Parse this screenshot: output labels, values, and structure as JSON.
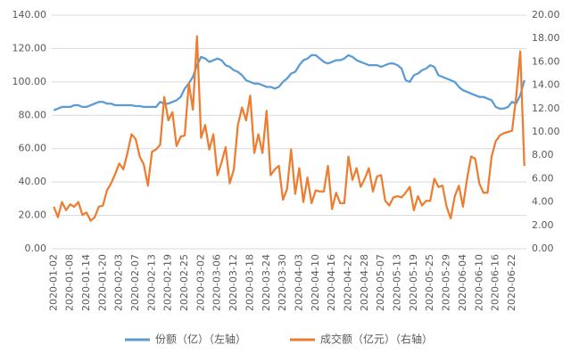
{
  "chart_data": {
    "type": "line",
    "categories": [
      "2020-01-02",
      null,
      null,
      null,
      "2020-01-08",
      null,
      null,
      null,
      "2020-01-14",
      null,
      null,
      null,
      "2020-01-20",
      null,
      null,
      null,
      "2020-02-03",
      null,
      null,
      null,
      "2020-02-07",
      null,
      null,
      null,
      "2020-02-13",
      null,
      null,
      null,
      "2020-02-19",
      null,
      null,
      null,
      "2020-02-25",
      null,
      null,
      null,
      "2020-03-02",
      null,
      null,
      null,
      "2020-03-06",
      null,
      null,
      null,
      "2020-03-12",
      null,
      null,
      null,
      "2020-03-18",
      null,
      null,
      null,
      "2020-03-24",
      null,
      null,
      null,
      "2020-03-30",
      null,
      null,
      null,
      "2020-04-03",
      null,
      null,
      null,
      "2020-04-10",
      null,
      null,
      null,
      "2020-04-16",
      null,
      null,
      null,
      "2020-04-22",
      null,
      null,
      null,
      "2020-04-28",
      null,
      null,
      null,
      "2020-05-07",
      null,
      null,
      null,
      "2020-05-13",
      null,
      null,
      null,
      "2020-05-19",
      null,
      null,
      null,
      "2020-05-25",
      null,
      null,
      null,
      "2020-05-29",
      null,
      null,
      null,
      "2020-06-04",
      null,
      null,
      null,
      "2020-06-10",
      null,
      null,
      null,
      "2020-06-16",
      null,
      null,
      null,
      "2020-06-22",
      null,
      null,
      null
    ],
    "series": [
      {
        "name": "份额（亿）（左轴）",
        "color": "#5b9bd5",
        "axis": "y",
        "values": [
          83,
          84,
          85,
          85,
          85,
          86,
          86,
          85,
          85,
          86,
          87,
          88,
          88,
          87,
          87,
          86,
          86,
          86,
          86,
          86,
          85.5,
          85.5,
          85,
          85,
          85,
          85,
          88,
          87,
          87,
          88,
          89,
          91,
          96,
          99,
          103,
          110,
          115,
          114,
          112,
          113,
          114,
          113,
          110,
          109,
          107,
          106,
          104,
          101,
          100,
          99,
          99,
          98,
          97,
          97,
          96,
          97,
          100,
          102,
          105,
          106,
          110,
          113,
          114,
          116,
          116,
          114,
          112,
          111,
          112,
          113,
          113,
          114,
          116,
          115,
          113,
          112,
          111,
          110,
          110,
          110,
          109,
          110,
          111,
          111,
          110,
          108,
          101,
          100,
          104,
          105,
          107,
          108,
          110,
          109,
          104,
          103,
          102,
          101,
          100,
          97,
          95,
          94,
          93,
          92,
          91,
          91,
          90,
          89,
          85,
          84,
          84,
          85,
          88,
          87,
          92,
          101
        ]
      },
      {
        "name": "成交额（亿元）（右轴）",
        "color": "#ed7d31",
        "axis": "y2",
        "values": [
          3.6,
          2.7,
          4.0,
          3.3,
          3.8,
          3.6,
          4.0,
          2.9,
          3.1,
          2.4,
          2.7,
          3.6,
          3.7,
          5.0,
          5.6,
          6.4,
          7.3,
          6.8,
          8.2,
          9.8,
          9.4,
          7.9,
          7.2,
          5.4,
          8.3,
          8.5,
          8.9,
          13.0,
          11.0,
          11.7,
          8.8,
          9.6,
          9.7,
          14.2,
          11.9,
          18.2,
          9.5,
          10.6,
          8.5,
          9.8,
          6.3,
          7.4,
          8.7,
          5.6,
          6.8,
          10.6,
          12.1,
          11.0,
          13.1,
          8.2,
          9.8,
          8.2,
          11.8,
          6.3,
          6.8,
          7.1,
          4.2,
          5.1,
          8.5,
          4.7,
          6.9,
          4.0,
          6.1,
          3.9,
          5.0,
          4.9,
          4.9,
          7.1,
          3.4,
          4.8,
          3.9,
          3.9,
          7.9,
          5.9,
          6.9,
          5.3,
          6.0,
          6.9,
          4.9,
          6.2,
          6.3,
          4.1,
          3.7,
          4.4,
          4.5,
          4.4,
          4.8,
          5.3,
          3.3,
          4.5,
          3.7,
          4.1,
          4.1,
          6.0,
          5.3,
          5.4,
          3.6,
          2.6,
          4.5,
          5.4,
          3.6,
          6.0,
          7.9,
          7.7,
          5.6,
          4.8,
          4.8,
          7.9,
          9.2,
          9.7,
          9.9,
          10.0,
          10.1,
          13.0,
          16.9,
          7.1
        ]
      }
    ],
    "ylim": [
      0,
      140
    ],
    "yticks": [
      {
        "value": 0,
        "label": "0.00"
      },
      {
        "value": 20,
        "label": "20.00"
      },
      {
        "value": 40,
        "label": "40.00"
      },
      {
        "value": 60,
        "label": "60.00"
      },
      {
        "value": 80,
        "label": "80.00"
      },
      {
        "value": 100,
        "label": "100.00"
      },
      {
        "value": 120,
        "label": "120.00"
      },
      {
        "value": 140,
        "label": "140.00"
      }
    ],
    "y2lim": [
      0,
      20
    ],
    "y2ticks": [
      {
        "value": 0,
        "label": "0.00"
      },
      {
        "value": 2,
        "label": "2.00"
      },
      {
        "value": 4,
        "label": "4.00"
      },
      {
        "value": 6,
        "label": "6.00"
      },
      {
        "value": 8,
        "label": "8.00"
      },
      {
        "value": 10,
        "label": "10.00"
      },
      {
        "value": 12,
        "label": "12.00"
      },
      {
        "value": 14,
        "label": "14.00"
      },
      {
        "value": 16,
        "label": "16.00"
      },
      {
        "value": 18,
        "label": "18.00"
      },
      {
        "value": 20,
        "label": "20.00"
      }
    ],
    "grid": true
  }
}
